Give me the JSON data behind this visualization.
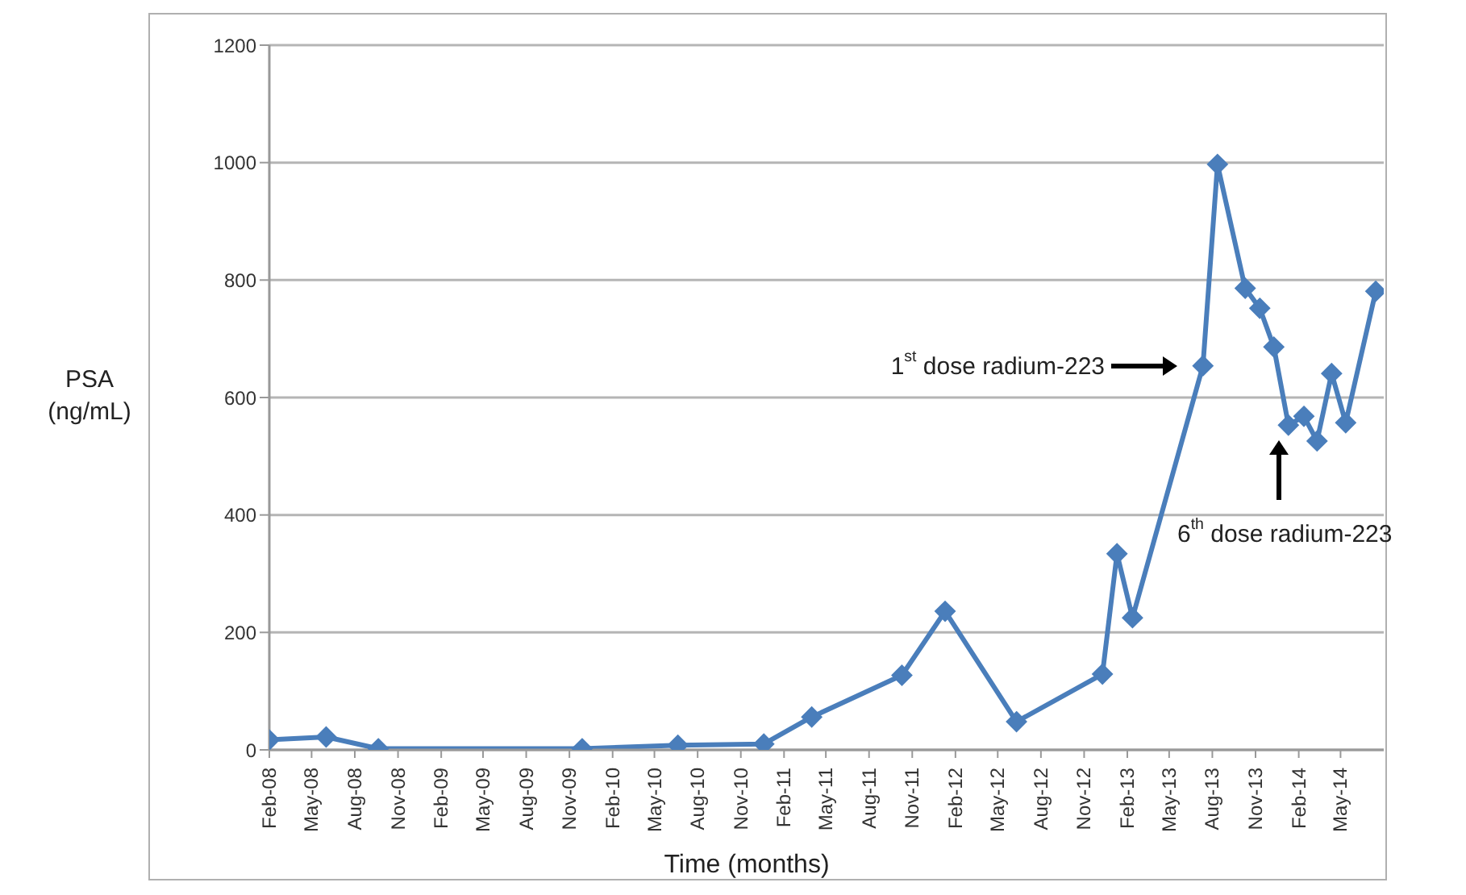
{
  "chart_data": {
    "type": "line",
    "xlabel": "Time (months)",
    "ylabel": "PSA\n(ng/mL)",
    "x": [
      "2008-02-01",
      "2008-06-01",
      "2008-09-20",
      "2009-11-28",
      "2010-06-20",
      "2010-12-20",
      "2011-04-01",
      "2011-10-10",
      "2012-01-10",
      "2012-06-10",
      "2012-12-10",
      "2013-01-10",
      "2013-02-12",
      "2013-07-12",
      "2013-08-12",
      "2013-10-10",
      "2013-11-10",
      "2013-12-10",
      "2014-01-10",
      "2014-02-12",
      "2014-03-12",
      "2014-04-12",
      "2014-05-12",
      "2014-07-15"
    ],
    "series": [
      {
        "color": "#4a7ebb",
        "values": [
          17,
          22,
          2,
          2,
          8,
          10,
          56,
          127,
          236,
          48,
          129,
          334,
          225,
          654,
          997,
          786,
          752,
          686,
          553,
          568,
          526,
          641,
          557,
          781
        ]
      }
    ],
    "xlim": [
      "2008-02-01",
      "2014-08-01"
    ],
    "xticks": [
      {
        "value": "2008-02",
        "label": "Feb-08"
      },
      {
        "value": "2008-05",
        "label": "May-08"
      },
      {
        "value": "2008-08",
        "label": "Aug-08"
      },
      {
        "value": "2008-11",
        "label": "Nov-08"
      },
      {
        "value": "2009-02",
        "label": "Feb-09"
      },
      {
        "value": "2009-05",
        "label": "May-09"
      },
      {
        "value": "2009-08",
        "label": "Aug-09"
      },
      {
        "value": "2009-11",
        "label": "Nov-09"
      },
      {
        "value": "2010-02",
        "label": "Feb-10"
      },
      {
        "value": "2010-05",
        "label": "May-10"
      },
      {
        "value": "2010-08",
        "label": "Aug-10"
      },
      {
        "value": "2010-11",
        "label": "Nov-10"
      },
      {
        "value": "2011-02",
        "label": "Feb-11"
      },
      {
        "value": "2011-05",
        "label": "May-11"
      },
      {
        "value": "2011-08",
        "label": "Aug-11"
      },
      {
        "value": "2011-11",
        "label": "Nov-11"
      },
      {
        "value": "2012-02",
        "label": "Feb-12"
      },
      {
        "value": "2012-05",
        "label": "May-12"
      },
      {
        "value": "2012-08",
        "label": "Aug-12"
      },
      {
        "value": "2012-11",
        "label": "Nov-12"
      },
      {
        "value": "2013-02",
        "label": "Feb-13"
      },
      {
        "value": "2013-05",
        "label": "May-13"
      },
      {
        "value": "2013-08",
        "label": "Aug-13"
      },
      {
        "value": "2013-11",
        "label": "Nov-13"
      },
      {
        "value": "2014-02",
        "label": "Feb-14"
      },
      {
        "value": "2014-05",
        "label": "May-14"
      }
    ],
    "ylim": [
      0,
      1200
    ],
    "yticks": [
      0,
      200,
      400,
      600,
      800,
      1000,
      1200
    ],
    "grid": "y",
    "marker": "diamond",
    "line_style": "solid",
    "annotations": [
      "1$^{st}$ dose radium-223",
      "6$^{th}$ dose radium-223"
    ]
  }
}
